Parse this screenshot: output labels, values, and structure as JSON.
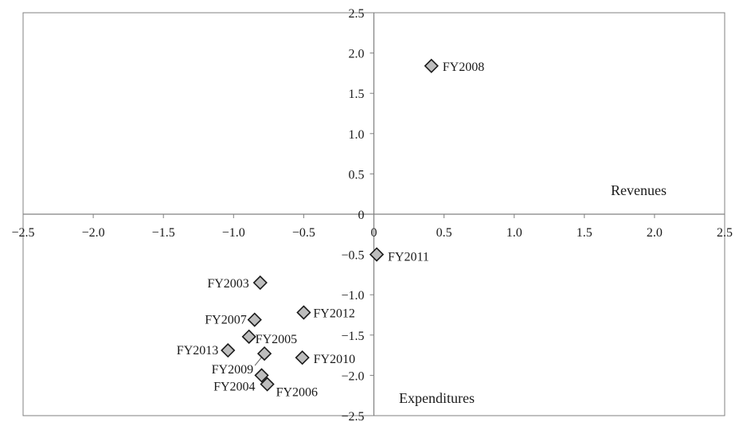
{
  "chart_data": {
    "type": "scatter",
    "title": "",
    "xlabel": "Revenues",
    "ylabel": "Expenditures",
    "xlim": [
      -2.5,
      2.5
    ],
    "ylim": [
      -2.5,
      2.5
    ],
    "x_ticks": [
      "−2.5",
      "−2.0",
      "−1.5",
      "−1.0",
      "−0.5",
      "0",
      "0.5",
      "1.0",
      "1.5",
      "2.0",
      "2.5"
    ],
    "y_ticks": [
      "2.5",
      "2.0",
      "1.5",
      "1.0",
      "0.5",
      "0",
      "−0.5",
      "−1.0",
      "−1.5",
      "−2.0",
      "−2.5"
    ],
    "grid": false,
    "marker": "diamond",
    "marker_color": "#bdbdbd",
    "points": [
      {
        "label": "FY2008",
        "x": 0.41,
        "y": 1.84
      },
      {
        "label": "FY2011",
        "x": 0.02,
        "y": -0.5
      },
      {
        "label": "FY2003",
        "x": -0.81,
        "y": -0.85
      },
      {
        "label": "FY2012",
        "x": -0.5,
        "y": -1.22
      },
      {
        "label": "FY2007",
        "x": -0.85,
        "y": -1.31
      },
      {
        "label": "FY2005",
        "x": -0.89,
        "y": -1.52
      },
      {
        "label": "FY2013",
        "x": -1.04,
        "y": -1.69
      },
      {
        "label": "FY2009",
        "x": -0.78,
        "y": -1.73
      },
      {
        "label": "FY2010",
        "x": -0.51,
        "y": -1.78
      },
      {
        "label": "FY2004",
        "x": -0.8,
        "y": -2.0
      },
      {
        "label": "FY2006",
        "x": -0.76,
        "y": -2.11
      }
    ]
  }
}
